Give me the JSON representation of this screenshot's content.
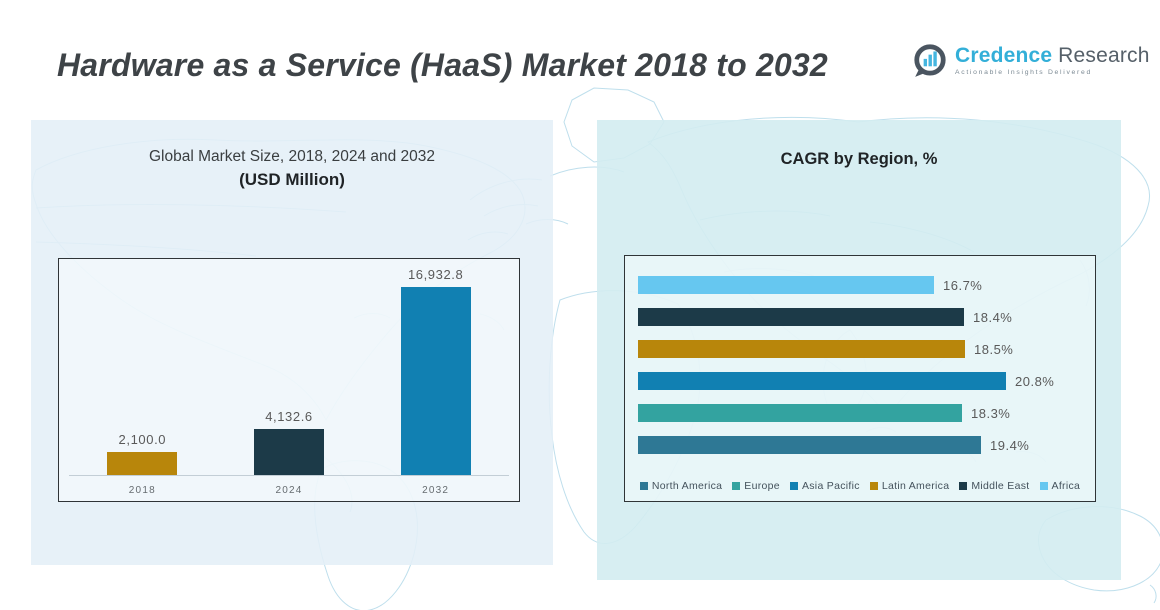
{
  "header": {
    "title": "Hardware as a Service (HaaS) Market 2018 to 2032",
    "brand": {
      "name_primary": "Credence",
      "name_secondary": "Research",
      "tagline": "Actionable Insights Delivered"
    }
  },
  "left_chart": {
    "title_line1": "Global Market Size, 2018, 2024 and 2032",
    "title_line2": "(USD Million)"
  },
  "right_chart": {
    "title": "CAGR by Region, %"
  },
  "colors": {
    "gold": "#b8860b",
    "navy": "#1c3a48",
    "blue": "#1180b2",
    "teal": "#33a3a0",
    "steel": "#2e7895",
    "sky": "#66c7f0",
    "brand_cyan": "#33afd8",
    "brand_dark": "#4a5560",
    "panel_left_bg": "#e4eff7",
    "panel_right_bg": "#d3ecf1"
  },
  "chart_data": [
    {
      "type": "bar",
      "title": "Global Market Size, 2018, 2024 and 2032 (USD Million)",
      "categories": [
        "2018",
        "2024",
        "2032"
      ],
      "values": [
        2100.0,
        4132.6,
        16932.8
      ],
      "value_labels": [
        "2,100.0",
        "4,132.6",
        "16,932.8"
      ],
      "bar_colors": [
        "#b8860b",
        "#1c3a48",
        "#1180b2"
      ],
      "xlabel": "",
      "ylabel": "",
      "ylim": [
        0,
        18000
      ],
      "grid": false,
      "legend_position": "none"
    },
    {
      "type": "bar",
      "orientation": "horizontal",
      "title": "CAGR by Region, %",
      "rows_top_to_bottom": [
        {
          "region": "Africa",
          "value": 16.7,
          "label": "16.7%",
          "color": "#66c7f0"
        },
        {
          "region": "Middle East",
          "value": 18.4,
          "label": "18.4%",
          "color": "#1c3a48"
        },
        {
          "region": "Latin America",
          "value": 18.5,
          "label": "18.5%",
          "color": "#b8860b"
        },
        {
          "region": "Asia Pacific",
          "value": 20.8,
          "label": "20.8%",
          "color": "#1180b2"
        },
        {
          "region": "Europe",
          "value": 18.3,
          "label": "18.3%",
          "color": "#33a3a0"
        },
        {
          "region": "North America",
          "value": 19.4,
          "label": "19.4%",
          "color": "#2e7895"
        }
      ],
      "legend": [
        {
          "label": "North America",
          "color": "#2e7895"
        },
        {
          "label": "Europe",
          "color": "#33a3a0"
        },
        {
          "label": "Asia Pacific",
          "color": "#1180b2"
        },
        {
          "label": "Latin America",
          "color": "#b8860b"
        },
        {
          "label": "Middle East",
          "color": "#1c3a48"
        },
        {
          "label": "Africa",
          "color": "#66c7f0"
        }
      ],
      "xlim": [
        0,
        22
      ],
      "grid": false,
      "legend_position": "bottom"
    }
  ]
}
